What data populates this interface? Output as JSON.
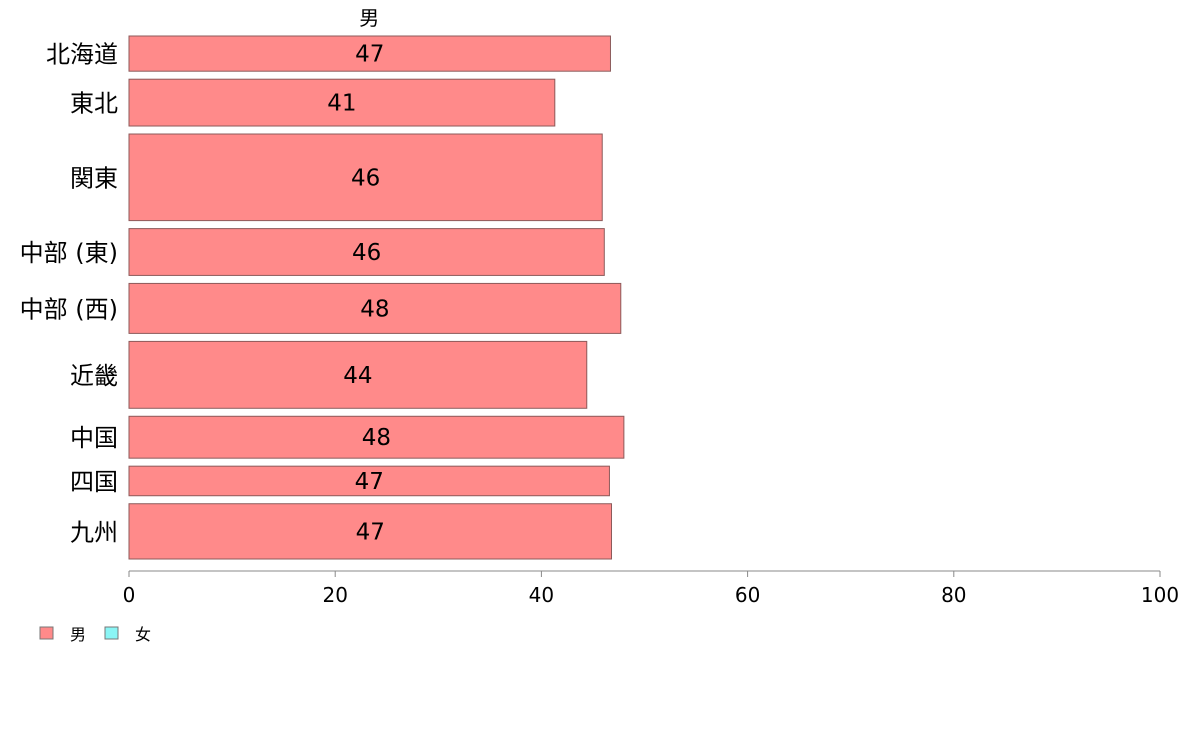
{
  "chart_data": {
    "type": "bar",
    "orientation": "horizontal",
    "header": "男",
    "categories": [
      "北海道",
      "東北",
      "関東",
      "中部 (東)",
      "中部 (西)",
      "近畿",
      "中国",
      "四国",
      "九州"
    ],
    "series": [
      {
        "name": "男",
        "color": "#ff8a8a",
        "values": [
          46.7,
          41.3,
          45.9,
          46.1,
          47.7,
          44.4,
          48.0,
          46.6,
          46.8
        ],
        "labels": [
          "47",
          "41",
          "46",
          "46",
          "48",
          "44",
          "48",
          "47",
          "47"
        ]
      }
    ],
    "category_weights": [
      1,
      1.33,
      2.46,
      1.33,
      1.42,
      1.9,
      1.19,
      0.84,
      1.57
    ],
    "xlim": [
      0,
      100
    ],
    "xticks": [
      "0",
      "20",
      "40",
      "60",
      "80",
      "100"
    ],
    "grid": false,
    "legend": {
      "position": "bottom-left",
      "items": [
        {
          "label": "男",
          "color": "#ff8a8a"
        },
        {
          "label": "女",
          "color": "#8af5f5"
        }
      ]
    }
  }
}
